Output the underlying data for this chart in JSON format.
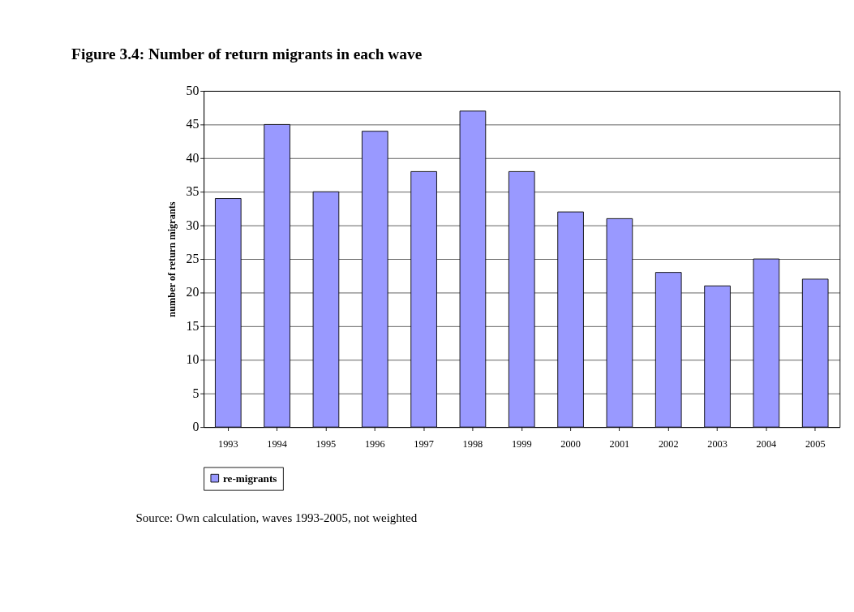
{
  "chart_data": {
    "type": "bar",
    "title": "Figure 3.4: Number of return migrants in each wave",
    "ylabel": "number of return migrants",
    "categories": [
      "1993",
      "1994",
      "1995",
      "1996",
      "1997",
      "1998",
      "1999",
      "2000",
      "2001",
      "2002",
      "2003",
      "2004",
      "2005"
    ],
    "series": [
      {
        "name": "re-migrants",
        "color": "#9999ff",
        "values": [
          34,
          45,
          35,
          44,
          38,
          47,
          38,
          32,
          31,
          23,
          21,
          25,
          22
        ]
      }
    ],
    "ylim": [
      0,
      50
    ],
    "yticks": [
      0,
      5,
      10,
      15,
      20,
      25,
      30,
      35,
      40,
      45,
      50
    ],
    "grid": "y",
    "legend": "bottom",
    "annotations": [
      "Source: Own calculation, waves 1993-2005, not weighted"
    ]
  }
}
